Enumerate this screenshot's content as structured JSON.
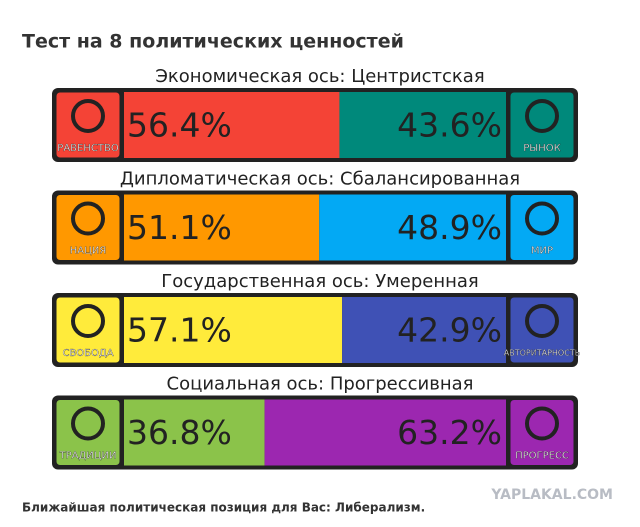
{
  "header": {
    "title": "Тест на 8 политических ценностей"
  },
  "axes": [
    {
      "label": "Экономическая ось: Центристская",
      "left": {
        "name": "РАВЕНСТВО",
        "value": 56.4,
        "value_label": "56.4%",
        "color": "#f44336"
      },
      "right": {
        "name": "РЫНОК",
        "value": 43.6,
        "value_label": "43.6%",
        "color": "#00897b"
      }
    },
    {
      "label": "Дипломатическая ось: Сбалансированная",
      "left": {
        "name": "НАЦИЯ",
        "value": 51.1,
        "value_label": "51.1%",
        "color": "#ff9800"
      },
      "right": {
        "name": "МИР",
        "value": 48.9,
        "value_label": "48.9%",
        "color": "#03a9f4"
      }
    },
    {
      "label": "Государственная ось: Умеренная",
      "left": {
        "name": "СВОБОДА",
        "value": 57.1,
        "value_label": "57.1%",
        "color": "#ffeb3b"
      },
      "right": {
        "name": "АВТОРИТАРНОСТЬ",
        "value": 42.9,
        "value_label": "42.9%",
        "color": "#3f51b5"
      }
    },
    {
      "label": "Социальная ось: Прогрессивная",
      "left": {
        "name": "ТРАДИЦИИ",
        "value": 36.8,
        "value_label": "36.8%",
        "color": "#8bc34a"
      },
      "right": {
        "name": "ПРОГРЕСС",
        "value": 63.2,
        "value_label": "63.2%",
        "color": "#9c27b0"
      }
    }
  ],
  "footer": {
    "text": "Ближайшая политическая позиция для Вас: Либерализм.",
    "watermark": "YAPLAKAL.COM"
  }
}
